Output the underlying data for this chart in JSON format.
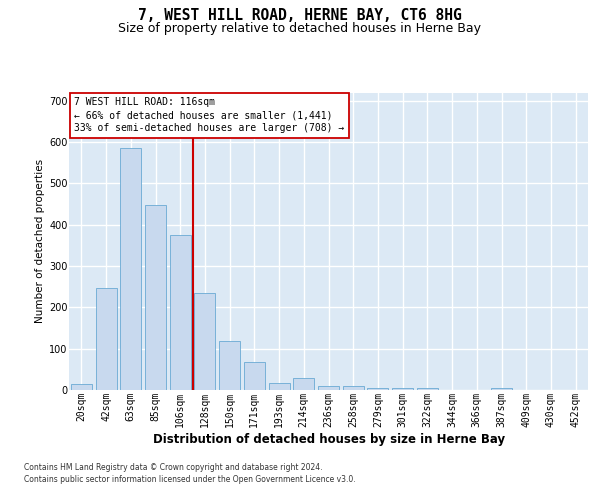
{
  "title": "7, WEST HILL ROAD, HERNE BAY, CT6 8HG",
  "subtitle": "Size of property relative to detached houses in Herne Bay",
  "xlabel": "Distribution of detached houses by size in Herne Bay",
  "ylabel": "Number of detached properties",
  "footnote1": "Contains HM Land Registry data © Crown copyright and database right 2024.",
  "footnote2": "Contains public sector information licensed under the Open Government Licence v3.0.",
  "categories": [
    "20sqm",
    "42sqm",
    "63sqm",
    "85sqm",
    "106sqm",
    "128sqm",
    "150sqm",
    "171sqm",
    "193sqm",
    "214sqm",
    "236sqm",
    "258sqm",
    "279sqm",
    "301sqm",
    "322sqm",
    "344sqm",
    "366sqm",
    "387sqm",
    "409sqm",
    "430sqm",
    "452sqm"
  ],
  "values": [
    15,
    248,
    585,
    448,
    375,
    235,
    118,
    68,
    18,
    28,
    10,
    10,
    5,
    5,
    6,
    1,
    1,
    6,
    1,
    1,
    1
  ],
  "bar_color": "#c8d9ee",
  "bar_edge_color": "#6aaad4",
  "vline_color": "#cc0000",
  "vline_x": 4.5,
  "annotation_line1": "7 WEST HILL ROAD: 116sqm",
  "annotation_line2": "← 66% of detached houses are smaller (1,441)",
  "annotation_line3": "33% of semi-detached houses are larger (708) →",
  "annotation_box_facecolor": "#ffffff",
  "annotation_box_edgecolor": "#cc0000",
  "ylim": [
    0,
    720
  ],
  "yticks": [
    0,
    100,
    200,
    300,
    400,
    500,
    600,
    700
  ],
  "bg_color": "#dce9f5",
  "grid_color": "#ffffff",
  "title_fontsize": 10.5,
  "subtitle_fontsize": 9,
  "xlabel_fontsize": 8.5,
  "ylabel_fontsize": 7.5,
  "tick_fontsize": 7,
  "annot_fontsize": 7
}
